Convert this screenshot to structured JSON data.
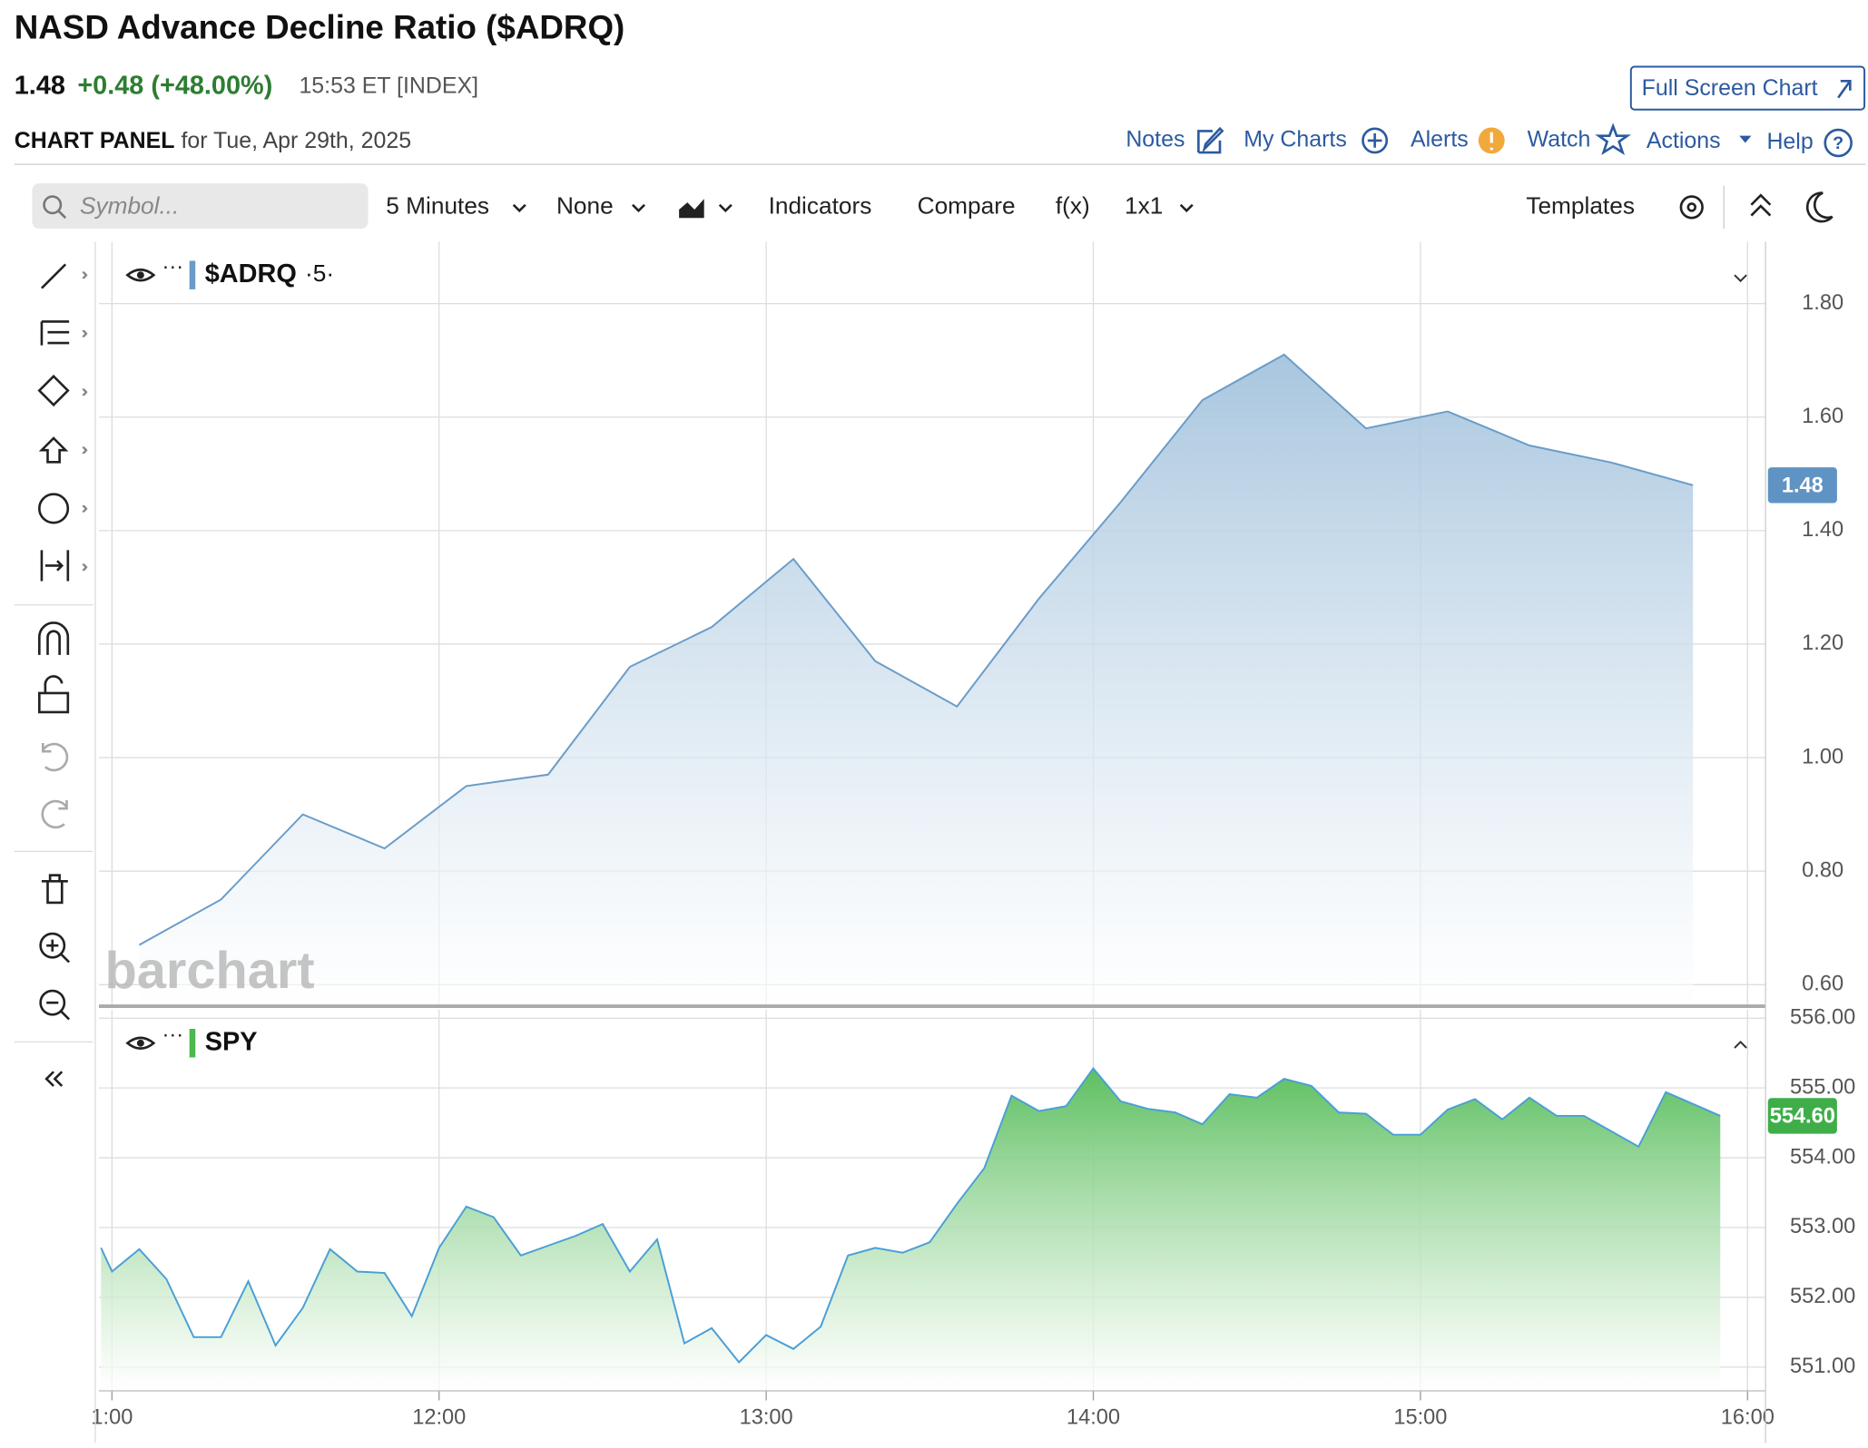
{
  "header": {
    "title": "NASD Advance Decline Ratio ($ADRQ)",
    "price": "1.48",
    "change": "+0.48 (+48.00%)",
    "time": "15:53 ET [INDEX]",
    "panel_label": "CHART PANEL",
    "panel_date": "for Tue, Apr 29th, 2025",
    "full_screen": "Full Screen Chart"
  },
  "nav": [
    "Notes",
    "My Charts",
    "Alerts",
    "Watch",
    "Actions",
    "Help"
  ],
  "toolbar": {
    "search": "Symbol...",
    "interval": "5 Minutes",
    "overlay": "None",
    "indicators": "Indicators",
    "compare": "Compare",
    "fx": "f(x)",
    "layout": "1x1",
    "templates": "Templates"
  },
  "watermark": "barchart",
  "chart_data": [
    {
      "type": "area",
      "xlim": [
        657.6,
        963.3
      ],
      "ylim": [
        0.562,
        1.909
      ],
      "yticks": [
        {
          "value": 0.6,
          "label": "0.60"
        },
        {
          "value": 0.8,
          "label": "0.80"
        },
        {
          "value": 1.0,
          "label": "1.00"
        },
        {
          "value": 1.2,
          "label": "1.20"
        },
        {
          "value": 1.4,
          "label": "1.40"
        },
        {
          "value": 1.6,
          "label": "1.60"
        },
        {
          "value": 1.8,
          "label": "1.80"
        }
      ],
      "grid": true,
      "x": [
        665,
        680,
        695,
        710,
        725,
        740,
        755,
        770,
        785,
        800,
        815,
        830,
        845,
        860,
        875,
        890,
        905,
        920,
        935,
        950
      ],
      "series": [
        {
          "name": "$ADRQ",
          "interval": "·5·",
          "color": "#6a9cc8",
          "fill": "#9fc0db",
          "badge_color": "#5f93c4",
          "last_label": "1.48",
          "values": [
            0.67,
            0.75,
            0.9,
            0.84,
            0.95,
            0.97,
            1.16,
            1.23,
            1.35,
            1.17,
            1.09,
            1.28,
            1.45,
            1.63,
            1.71,
            1.58,
            1.61,
            1.55,
            1.52,
            1.48
          ]
        }
      ]
    },
    {
      "type": "area",
      "xlim": [
        657.6,
        963.3
      ],
      "ylim": [
        550.66,
        556.12
      ],
      "yticks": [
        {
          "value": 551,
          "label": "551.00"
        },
        {
          "value": 552,
          "label": "552.00"
        },
        {
          "value": 553,
          "label": "553.00"
        },
        {
          "value": 554,
          "label": "554.00"
        },
        {
          "value": 555,
          "label": "555.00"
        },
        {
          "value": 556,
          "label": "556.00"
        }
      ],
      "xticks": [
        {
          "value": 660,
          "label": "1:00"
        },
        {
          "value": 720,
          "label": "12:00"
        },
        {
          "value": 780,
          "label": "13:00"
        },
        {
          "value": 840,
          "label": "14:00"
        },
        {
          "value": 900,
          "label": "15:00"
        },
        {
          "value": 960,
          "label": "16:00"
        }
      ],
      "grid": true,
      "x": [
        658,
        660,
        665,
        670,
        675,
        680,
        685,
        690,
        695,
        700,
        705,
        710,
        715,
        720,
        725,
        730,
        735,
        740,
        745,
        750,
        755,
        760,
        765,
        770,
        775,
        780,
        785,
        790,
        795,
        800,
        805,
        810,
        815,
        820,
        825,
        830,
        835,
        840,
        845,
        850,
        855,
        860,
        865,
        870,
        875,
        880,
        885,
        890,
        895,
        900,
        905,
        910,
        915,
        920,
        925,
        930,
        935,
        940,
        945,
        950,
        955
      ],
      "series": [
        {
          "name": "SPY",
          "color": "#4a9fd6",
          "fill": "#5dbf60",
          "legend_color": "#4cb84f",
          "badge_color": "#3fae49",
          "last_label": "554.60",
          "values": [
            552.71,
            552.37,
            552.69,
            552.26,
            551.43,
            551.43,
            552.23,
            551.31,
            551.85,
            552.69,
            552.37,
            552.35,
            551.73,
            552.71,
            553.3,
            553.15,
            552.6,
            552.74,
            552.88,
            553.05,
            552.37,
            552.83,
            551.34,
            551.56,
            551.07,
            551.46,
            551.26,
            551.58,
            552.6,
            552.71,
            552.64,
            552.79,
            553.34,
            553.85,
            554.89,
            554.67,
            554.74,
            555.28,
            554.81,
            554.7,
            554.65,
            554.48,
            554.91,
            554.86,
            555.13,
            555.03,
            554.65,
            554.63,
            554.33,
            554.33,
            554.69,
            554.84,
            554.55,
            554.86,
            554.6,
            554.6,
            554.38,
            554.16,
            554.94,
            554.77,
            554.6
          ]
        }
      ]
    }
  ]
}
